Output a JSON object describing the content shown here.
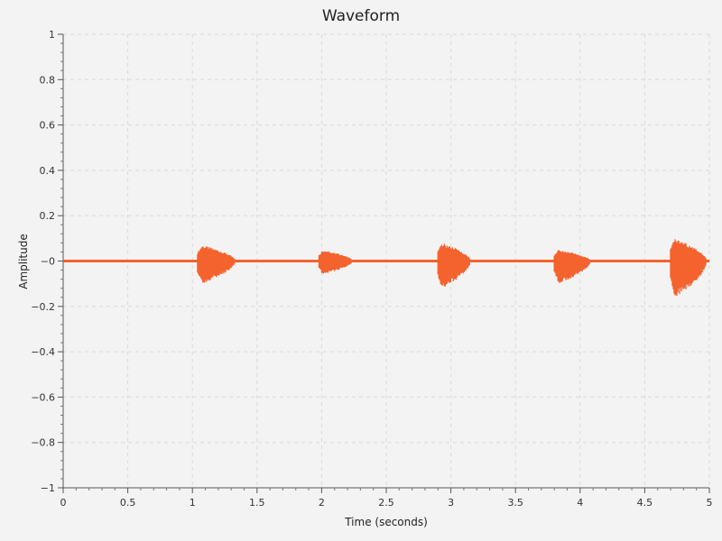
{
  "chart_data": {
    "type": "area",
    "title": "Waveform",
    "xlabel": "Time (seconds)",
    "ylabel": "Amplitude",
    "xlim": [
      0,
      5
    ],
    "ylim": [
      -1,
      1
    ],
    "grid": true,
    "color": "#f4622e",
    "x_ticks": [
      0,
      0.5,
      1,
      1.5,
      2,
      2.5,
      3,
      3.5,
      4,
      4.5,
      5
    ],
    "x_tick_labels": [
      "0",
      "0.5",
      "1",
      "1.5",
      "2",
      "2.5",
      "3",
      "3.5",
      "4",
      "4.5",
      "5"
    ],
    "y_ticks": [
      -1,
      -0.8,
      -0.6,
      -0.4,
      -0.2,
      0,
      0.2,
      0.4,
      0.6,
      0.8,
      1
    ],
    "y_tick_labels": [
      "−1",
      "−0.8",
      "−0.6",
      "−0.4",
      "−0.2",
      "−0",
      "0.2",
      "0.4",
      "0.6",
      "0.8",
      "1"
    ],
    "bursts": [
      {
        "start": 1.04,
        "end": 1.33,
        "peak_pos": 0.07,
        "peak_neg": -0.1
      },
      {
        "start": 1.98,
        "end": 2.24,
        "peak_pos": 0.05,
        "peak_neg": -0.06
      },
      {
        "start": 2.9,
        "end": 3.15,
        "peak_pos": 0.08,
        "peak_neg": -0.12
      },
      {
        "start": 3.8,
        "end": 4.08,
        "peak_pos": 0.05,
        "peak_neg": -0.1
      },
      {
        "start": 4.7,
        "end": 4.98,
        "peak_pos": 0.1,
        "peak_neg": -0.16
      }
    ]
  }
}
